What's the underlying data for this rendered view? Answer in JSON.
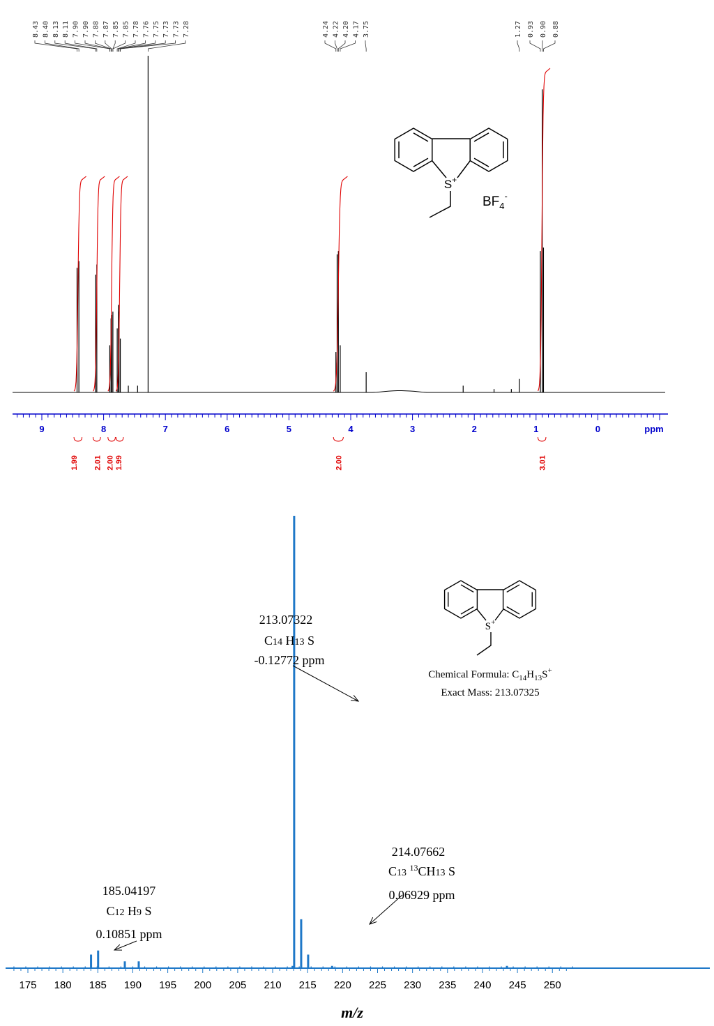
{
  "chart_data": [
    {
      "type": "line",
      "kind": "1H NMR spectrum",
      "xlabel": "ppm",
      "xlim": [
        9.5,
        -1.1
      ],
      "x_reversed": true,
      "ticks": [
        "9",
        "8",
        "7",
        "6",
        "5",
        "4",
        "3",
        "2",
        "1",
        "0"
      ],
      "peak_labels": [
        "8.43",
        "8.40",
        "8.13",
        "8.11",
        "7.90",
        "7.90",
        "7.88",
        "7.87",
        "7.85",
        "7.85",
        "7.78",
        "7.76",
        "7.75",
        "7.73",
        "7.73",
        "7.28",
        "4.24",
        "4.22",
        "4.20",
        "4.17",
        "3.75",
        "1.27",
        "0.93",
        "0.90",
        "0.88"
      ],
      "peaks": [
        {
          "x": 8.43,
          "y": 0.37
        },
        {
          "x": 8.4,
          "y": 0.39
        },
        {
          "x": 8.13,
          "y": 0.35
        },
        {
          "x": 8.11,
          "y": 0.38
        },
        {
          "x": 7.9,
          "y": 0.14
        },
        {
          "x": 7.88,
          "y": 0.22
        },
        {
          "x": 7.87,
          "y": 0.23
        },
        {
          "x": 7.85,
          "y": 0.24
        },
        {
          "x": 7.78,
          "y": 0.19
        },
        {
          "x": 7.76,
          "y": 0.26
        },
        {
          "x": 7.75,
          "y": 0.24
        },
        {
          "x": 7.73,
          "y": 0.16
        },
        {
          "x": 7.6,
          "y": 0.02
        },
        {
          "x": 7.45,
          "y": 0.02
        },
        {
          "x": 7.28,
          "y": 1.0
        },
        {
          "x": 4.24,
          "y": 0.12
        },
        {
          "x": 4.22,
          "y": 0.41
        },
        {
          "x": 4.2,
          "y": 0.42
        },
        {
          "x": 4.17,
          "y": 0.14
        },
        {
          "x": 3.75,
          "y": 0.06
        },
        {
          "x": 2.18,
          "y": 0.02
        },
        {
          "x": 1.68,
          "y": 0.01
        },
        {
          "x": 1.4,
          "y": 0.01
        },
        {
          "x": 1.27,
          "y": 0.04
        },
        {
          "x": 0.93,
          "y": 0.42
        },
        {
          "x": 0.9,
          "y": 0.9
        },
        {
          "x": 0.88,
          "y": 0.43
        }
      ],
      "integrals": [
        {
          "from": 8.48,
          "to": 8.35,
          "value": "1.99",
          "label_x": 8.48
        },
        {
          "from": 8.17,
          "to": 8.05,
          "value": "2.01",
          "label_x": 8.1
        },
        {
          "from": 7.93,
          "to": 7.81,
          "value": "2.00",
          "label_x": 7.9
        },
        {
          "from": 7.8,
          "to": 7.68,
          "value": "1.99",
          "label_x": 7.76
        },
        {
          "from": 4.28,
          "to": 4.12,
          "value": "2.00",
          "label_x": 4.2
        },
        {
          "from": 0.97,
          "to": 0.84,
          "value": "3.01",
          "label_x": 0.9
        }
      ],
      "structure": {
        "cation_label": "S",
        "cation_charge": "+",
        "anion_main": "BF",
        "anion_sub": "4",
        "anion_charge": "-"
      },
      "colors": {
        "trace": "#000000",
        "integral": "#e00000",
        "axis": "#0000cc"
      }
    },
    {
      "type": "bar",
      "kind": "HRMS spectrum",
      "xlabel_m": "m",
      "xlabel_sep": "/",
      "xlabel_z": "z",
      "xlim": [
        172.5,
        253
      ],
      "ticks": [
        "175",
        "180",
        "185",
        "190",
        "195",
        "200",
        "205",
        "210",
        "215",
        "220",
        "225",
        "230",
        "235",
        "240",
        "245",
        "250"
      ],
      "peaks": [
        {
          "x": 213.07322,
          "y": 100
        },
        {
          "x": 214.07662,
          "y": 10.8
        },
        {
          "x": 215.07,
          "y": 3.0
        },
        {
          "x": 184.03,
          "y": 3.0
        },
        {
          "x": 185.04197,
          "y": 3.9
        },
        {
          "x": 188.86,
          "y": 1.5
        },
        {
          "x": 190.85,
          "y": 1.5
        },
        {
          "x": 212.85,
          "y": 0.5
        },
        {
          "x": 218.5,
          "y": 0.5
        },
        {
          "x": 243.5,
          "y": 0.5
        }
      ],
      "annotations": [
        {
          "mz": "213.07322",
          "formula_parts": [
            "C",
            "14",
            " H",
            "13",
            " S"
          ],
          "error": "-0.12772 ppm"
        },
        {
          "mz": "214.07662",
          "formula_parts": [
            "C",
            "13",
            " ",
            "13",
            "CH",
            "13",
            " S"
          ],
          "error": "0.06929 ppm"
        },
        {
          "mz": "185.04197",
          "formula_parts": [
            "C",
            "12",
            " H",
            "9",
            " S"
          ],
          "error": "0.10851 ppm"
        }
      ],
      "structure": {
        "cation_label": "S",
        "cation_charge": "+",
        "formula_label": "Chemical Formula: C",
        "formula_sub1": "14",
        "formula_h": "H",
        "formula_sub2": "13",
        "formula_s": "S",
        "formula_charge": "+",
        "mass_label": "Exact Mass: 213.07325"
      },
      "colors": {
        "bars": "#1f78c8",
        "axis": "#1f78c8"
      }
    }
  ]
}
